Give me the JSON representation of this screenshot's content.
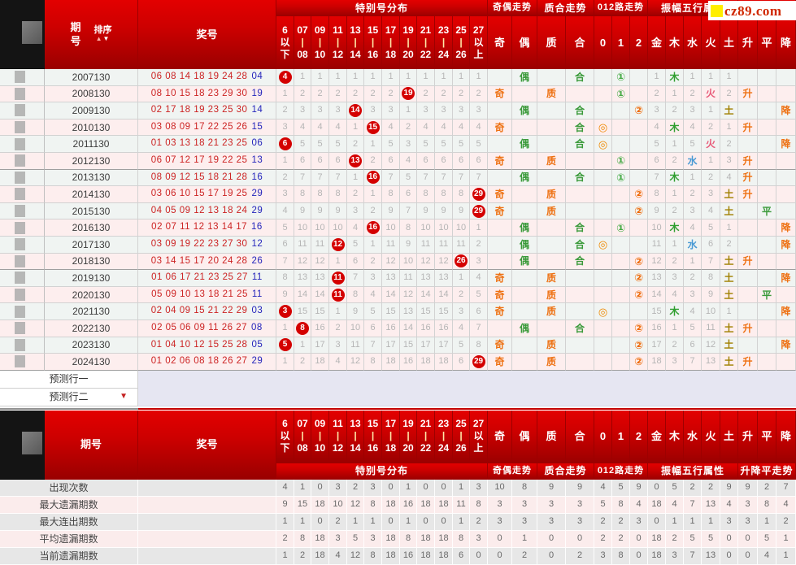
{
  "logo": {
    "text": "cz89.com"
  },
  "header": {
    "period_label": "期号",
    "sort_label": "排序",
    "prize_label": "奖号",
    "groups": [
      "特别号分布",
      "奇偶走势",
      "质合走势",
      "012路走势",
      "振幅五行属性",
      "升降平走势"
    ],
    "dist_cols": [
      [
        "6",
        "以",
        "下"
      ],
      [
        "07",
        "|",
        "08"
      ],
      [
        "09",
        "|",
        "10"
      ],
      [
        "11",
        "|",
        "12"
      ],
      [
        "13",
        "|",
        "14"
      ],
      [
        "15",
        "|",
        "16"
      ],
      [
        "17",
        "|",
        "18"
      ],
      [
        "19",
        "|",
        "20"
      ],
      [
        "21",
        "|",
        "22"
      ],
      [
        "23",
        "|",
        "24"
      ],
      [
        "25",
        "|",
        "26"
      ],
      [
        "27",
        "以",
        "上"
      ]
    ],
    "trend_cols": [
      "奇",
      "偶",
      "质",
      "合",
      "0",
      "1",
      "2",
      "金",
      "木",
      "水",
      "火",
      "土",
      "升",
      "平",
      "降"
    ]
  },
  "road_symbols": {
    "0": "◎",
    "1": "①",
    "2": "②"
  },
  "colors": {
    "accent_red": "#c40000",
    "ball": "#d40000",
    "number_red": "#cc2222",
    "special_blue": "#2424bb",
    "omission_gray": "#b5b5b5",
    "odd_char": "#ee7011",
    "even_char": "#3a9a3a",
    "road0": "#ee8800",
    "road1": "#44aa44",
    "road2": "#ee6600",
    "element_gold": "#c8a200",
    "element_wood": "#2f9e2f",
    "element_water": "#4a9ad4",
    "element_fire": "#e85c7a",
    "element_earth": "#a08000",
    "row_odd_bg": "#f0f4f2",
    "row_even_bg": "#fdeeee",
    "sum_gray_bg": "#e7e7e7",
    "sum_pink_bg": "#fbecec",
    "prediction_bg": "#e6e6f2"
  },
  "rows": [
    {
      "period": "2007130",
      "numbers": "06 08 14 18 19 24 28",
      "special": "04",
      "dist": [
        "#4",
        "1",
        "1",
        "1",
        "1",
        "1",
        "1",
        "1",
        "1",
        "1",
        "1",
        "1"
      ],
      "odd_even": "偶",
      "prime_comp": "合",
      "road": "1",
      "elements": [
        "1",
        "木",
        "1",
        "1",
        "1"
      ],
      "updown": ""
    },
    {
      "period": "2008130",
      "numbers": "08 10 15 18 23 29 30",
      "special": "19",
      "dist": [
        "1",
        "2",
        "2",
        "2",
        "2",
        "2",
        "2",
        "#19",
        "2",
        "2",
        "2",
        "2"
      ],
      "odd_even": "奇",
      "prime_comp": "质",
      "road": "1",
      "elements": [
        "2",
        "1",
        "2",
        "火",
        "2"
      ],
      "updown": "升"
    },
    {
      "period": "2009130",
      "numbers": "02 17 18 19 23 25 30",
      "special": "14",
      "dist": [
        "2",
        "3",
        "3",
        "3",
        "#14",
        "3",
        "3",
        "1",
        "3",
        "3",
        "3",
        "3"
      ],
      "odd_even": "偶",
      "prime_comp": "合",
      "road": "2",
      "elements": [
        "3",
        "2",
        "3",
        "1",
        "土"
      ],
      "updown": "降"
    },
    {
      "period": "2010130",
      "numbers": "03 08 09 17 22 25 26",
      "special": "15",
      "dist": [
        "3",
        "4",
        "4",
        "4",
        "1",
        "#15",
        "4",
        "2",
        "4",
        "4",
        "4",
        "4"
      ],
      "odd_even": "奇",
      "prime_comp": "合",
      "road": "0",
      "elements": [
        "4",
        "木",
        "4",
        "2",
        "1"
      ],
      "updown": "升"
    },
    {
      "period": "2011130",
      "numbers": "01 03 13 18 21 23 25",
      "special": "06",
      "dist": [
        "#6",
        "5",
        "5",
        "5",
        "2",
        "1",
        "5",
        "3",
        "5",
        "5",
        "5",
        "5"
      ],
      "odd_even": "偶",
      "prime_comp": "合",
      "road": "0",
      "elements": [
        "5",
        "1",
        "5",
        "火",
        "2"
      ],
      "updown": "降"
    },
    {
      "period": "2012130",
      "numbers": "06 07 12 17 19 22 25",
      "special": "13",
      "dist": [
        "1",
        "6",
        "6",
        "6",
        "#13",
        "2",
        "6",
        "4",
        "6",
        "6",
        "6",
        "6"
      ],
      "odd_even": "奇",
      "prime_comp": "质",
      "road": "1",
      "elements": [
        "6",
        "2",
        "水",
        "1",
        "3"
      ],
      "updown": "升"
    },
    {
      "period": "2013130",
      "numbers": "08 09 12 15 18 21 28",
      "special": "16",
      "dist": [
        "2",
        "7",
        "7",
        "7",
        "1",
        "#16",
        "7",
        "5",
        "7",
        "7",
        "7",
        "7"
      ],
      "odd_even": "偶",
      "prime_comp": "合",
      "road": "1",
      "elements": [
        "7",
        "木",
        "1",
        "2",
        "4"
      ],
      "updown": "升"
    },
    {
      "period": "2014130",
      "numbers": "03 06 10 15 17 19 25",
      "special": "29",
      "dist": [
        "3",
        "8",
        "8",
        "8",
        "2",
        "1",
        "8",
        "6",
        "8",
        "8",
        "8",
        "#29"
      ],
      "odd_even": "奇",
      "prime_comp": "质",
      "road": "2",
      "elements": [
        "8",
        "1",
        "2",
        "3",
        "土"
      ],
      "updown": "升"
    },
    {
      "period": "2015130",
      "numbers": "04 05 09 12 13 18 24",
      "special": "29",
      "dist": [
        "4",
        "9",
        "9",
        "9",
        "3",
        "2",
        "9",
        "7",
        "9",
        "9",
        "9",
        "#29"
      ],
      "odd_even": "奇",
      "prime_comp": "质",
      "road": "2",
      "elements": [
        "9",
        "2",
        "3",
        "4",
        "土"
      ],
      "updown": "平"
    },
    {
      "period": "2016130",
      "numbers": "02 07 11 12 13 14 17",
      "special": "16",
      "dist": [
        "5",
        "10",
        "10",
        "10",
        "4",
        "#16",
        "10",
        "8",
        "10",
        "10",
        "10",
        "1"
      ],
      "odd_even": "偶",
      "prime_comp": "合",
      "road": "1",
      "elements": [
        "10",
        "木",
        "4",
        "5",
        "1"
      ],
      "updown": "降"
    },
    {
      "period": "2017130",
      "numbers": "03 09 19 22 23 27 30",
      "special": "12",
      "dist": [
        "6",
        "11",
        "11",
        "#12",
        "5",
        "1",
        "11",
        "9",
        "11",
        "11",
        "11",
        "2"
      ],
      "odd_even": "偶",
      "prime_comp": "合",
      "road": "0",
      "elements": [
        "11",
        "1",
        "水",
        "6",
        "2"
      ],
      "updown": "降"
    },
    {
      "period": "2018130",
      "numbers": "03 14 15 17 20 24 28",
      "special": "26",
      "dist": [
        "7",
        "12",
        "12",
        "1",
        "6",
        "2",
        "12",
        "10",
        "12",
        "12",
        "#26",
        "3"
      ],
      "odd_even": "偶",
      "prime_comp": "合",
      "road": "2",
      "elements": [
        "12",
        "2",
        "1",
        "7",
        "土"
      ],
      "updown": "升"
    },
    {
      "period": "2019130",
      "numbers": "01 06 17 21 23 25 27",
      "special": "11",
      "dist": [
        "8",
        "13",
        "13",
        "#11",
        "7",
        "3",
        "13",
        "11",
        "13",
        "13",
        "1",
        "4"
      ],
      "odd_even": "奇",
      "prime_comp": "质",
      "road": "2",
      "elements": [
        "13",
        "3",
        "2",
        "8",
        "土"
      ],
      "updown": "降"
    },
    {
      "period": "2020130",
      "numbers": "05 09 10 13 18 21 25",
      "special": "11",
      "dist": [
        "9",
        "14",
        "14",
        "#11",
        "8",
        "4",
        "14",
        "12",
        "14",
        "14",
        "2",
        "5"
      ],
      "odd_even": "奇",
      "prime_comp": "质",
      "road": "2",
      "elements": [
        "14",
        "4",
        "3",
        "9",
        "土"
      ],
      "updown": "平"
    },
    {
      "period": "2021130",
      "numbers": "02 04 09 15 21 22 29",
      "special": "03",
      "dist": [
        "#3",
        "15",
        "15",
        "1",
        "9",
        "5",
        "15",
        "13",
        "15",
        "15",
        "3",
        "6"
      ],
      "odd_even": "奇",
      "prime_comp": "质",
      "road": "0",
      "elements": [
        "15",
        "木",
        "4",
        "10",
        "1"
      ],
      "updown": "降"
    },
    {
      "period": "2022130",
      "numbers": "02 05 06 09 11 26 27",
      "special": "08",
      "dist": [
        "1",
        "#8",
        "16",
        "2",
        "10",
        "6",
        "16",
        "14",
        "16",
        "16",
        "4",
        "7"
      ],
      "odd_even": "偶",
      "prime_comp": "合",
      "road": "2",
      "elements": [
        "16",
        "1",
        "5",
        "11",
        "土"
      ],
      "updown": "升"
    },
    {
      "period": "2023130",
      "numbers": "01 04 10 12 15 25 28",
      "special": "05",
      "dist": [
        "#5",
        "1",
        "17",
        "3",
        "11",
        "7",
        "17",
        "15",
        "17",
        "17",
        "5",
        "8"
      ],
      "odd_even": "奇",
      "prime_comp": "质",
      "road": "2",
      "elements": [
        "17",
        "2",
        "6",
        "12",
        "土"
      ],
      "updown": "降"
    },
    {
      "period": "2024130",
      "numbers": "01 02 06 08 18 26 27",
      "special": "29",
      "dist": [
        "1",
        "2",
        "18",
        "4",
        "12",
        "8",
        "18",
        "16",
        "18",
        "18",
        "6",
        "#29"
      ],
      "odd_even": "奇",
      "prime_comp": "质",
      "road": "2",
      "elements": [
        "18",
        "3",
        "7",
        "13",
        "土"
      ],
      "updown": "升"
    }
  ],
  "prediction": {
    "row1": "预测行一",
    "row2": "预测行二"
  },
  "summary": [
    {
      "label": "出现次数",
      "values": [
        4,
        1,
        0,
        3,
        2,
        3,
        0,
        1,
        0,
        0,
        1,
        3,
        10,
        8,
        9,
        9,
        4,
        5,
        9,
        0,
        5,
        2,
        2,
        9,
        9,
        2,
        7
      ]
    },
    {
      "label": "最大遗漏期数",
      "values": [
        9,
        15,
        18,
        10,
        12,
        8,
        18,
        16,
        18,
        18,
        11,
        8,
        3,
        3,
        3,
        3,
        5,
        8,
        4,
        18,
        4,
        7,
        13,
        4,
        3,
        8,
        4
      ]
    },
    {
      "label": "最大连出期数",
      "values": [
        1,
        1,
        0,
        2,
        1,
        1,
        0,
        1,
        0,
        0,
        1,
        2,
        3,
        3,
        3,
        3,
        2,
        2,
        3,
        0,
        1,
        1,
        1,
        3,
        3,
        1,
        2
      ]
    },
    {
      "label": "平均遗漏期数",
      "values": [
        2,
        8,
        18,
        3,
        5,
        3,
        18,
        8,
        18,
        18,
        8,
        3,
        0,
        1,
        0,
        0,
        2,
        2,
        0,
        18,
        2,
        5,
        5,
        0,
        0,
        5,
        1
      ]
    },
    {
      "label": "当前遗漏期数",
      "values": [
        1,
        2,
        18,
        4,
        12,
        8,
        18,
        16,
        18,
        18,
        6,
        0,
        0,
        2,
        0,
        2,
        3,
        8,
        0,
        18,
        3,
        7,
        13,
        0,
        0,
        4,
        1
      ]
    }
  ]
}
